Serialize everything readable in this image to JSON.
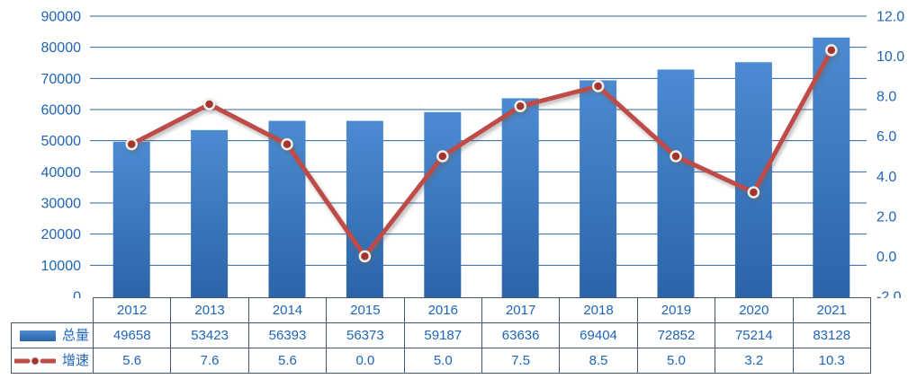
{
  "chart_data": {
    "type": "bar+line",
    "categories": [
      "2012",
      "2013",
      "2014",
      "2015",
      "2016",
      "2017",
      "2018",
      "2019",
      "2020",
      "2021"
    ],
    "series": [
      {
        "name": "总量",
        "type": "bar",
        "axis": "left",
        "values": [
          49658,
          53423,
          56393,
          56373,
          59187,
          63636,
          69404,
          72852,
          75214,
          83128
        ]
      },
      {
        "name": "增速",
        "type": "line",
        "axis": "right",
        "values": [
          5.6,
          7.6,
          5.6,
          0.0,
          5.0,
          7.5,
          8.5,
          5.0,
          3.2,
          10.3
        ]
      }
    ],
    "title": "",
    "xlabel": "",
    "ylabel": "",
    "left_axis": {
      "min": 0,
      "max": 90000,
      "step": 10000,
      "ticks": [
        "0",
        "10000",
        "20000",
        "30000",
        "40000",
        "50000",
        "60000",
        "70000",
        "80000",
        "90000"
      ]
    },
    "right_axis": {
      "min": -2,
      "max": 12,
      "step": 2,
      "ticks": [
        "-2.0",
        "0.0",
        "2.0",
        "4.0",
        "6.0",
        "8.0",
        "10.0",
        "12.0"
      ]
    },
    "grid": true,
    "legend_position": "table-left"
  },
  "table": {
    "header": [
      "2012",
      "2013",
      "2014",
      "2015",
      "2016",
      "2017",
      "2018",
      "2019",
      "2020",
      "2021"
    ],
    "rows": [
      {
        "label": "总量",
        "key_icon": "bar-swatch-icon",
        "values": [
          "49658",
          "53423",
          "56393",
          "56373",
          "59187",
          "63636",
          "69404",
          "72852",
          "75214",
          "83128"
        ]
      },
      {
        "label": "增速",
        "key_icon": "line-marker-icon",
        "values": [
          "5.6",
          "7.6",
          "5.6",
          "0.0",
          "5.0",
          "7.5",
          "8.5",
          "5.0",
          "3.2",
          "10.3"
        ]
      }
    ]
  },
  "colors": {
    "bar_top": "#4C8BD2",
    "bar_bottom": "#2B64A8",
    "line": "#BE4B48",
    "marker_fill": "#A23431",
    "marker_ring": "#F2EFE4",
    "grid": "#31649F",
    "axis_text": "#2065B4",
    "table_text": "#2065B4",
    "table_border": "#44546A"
  }
}
